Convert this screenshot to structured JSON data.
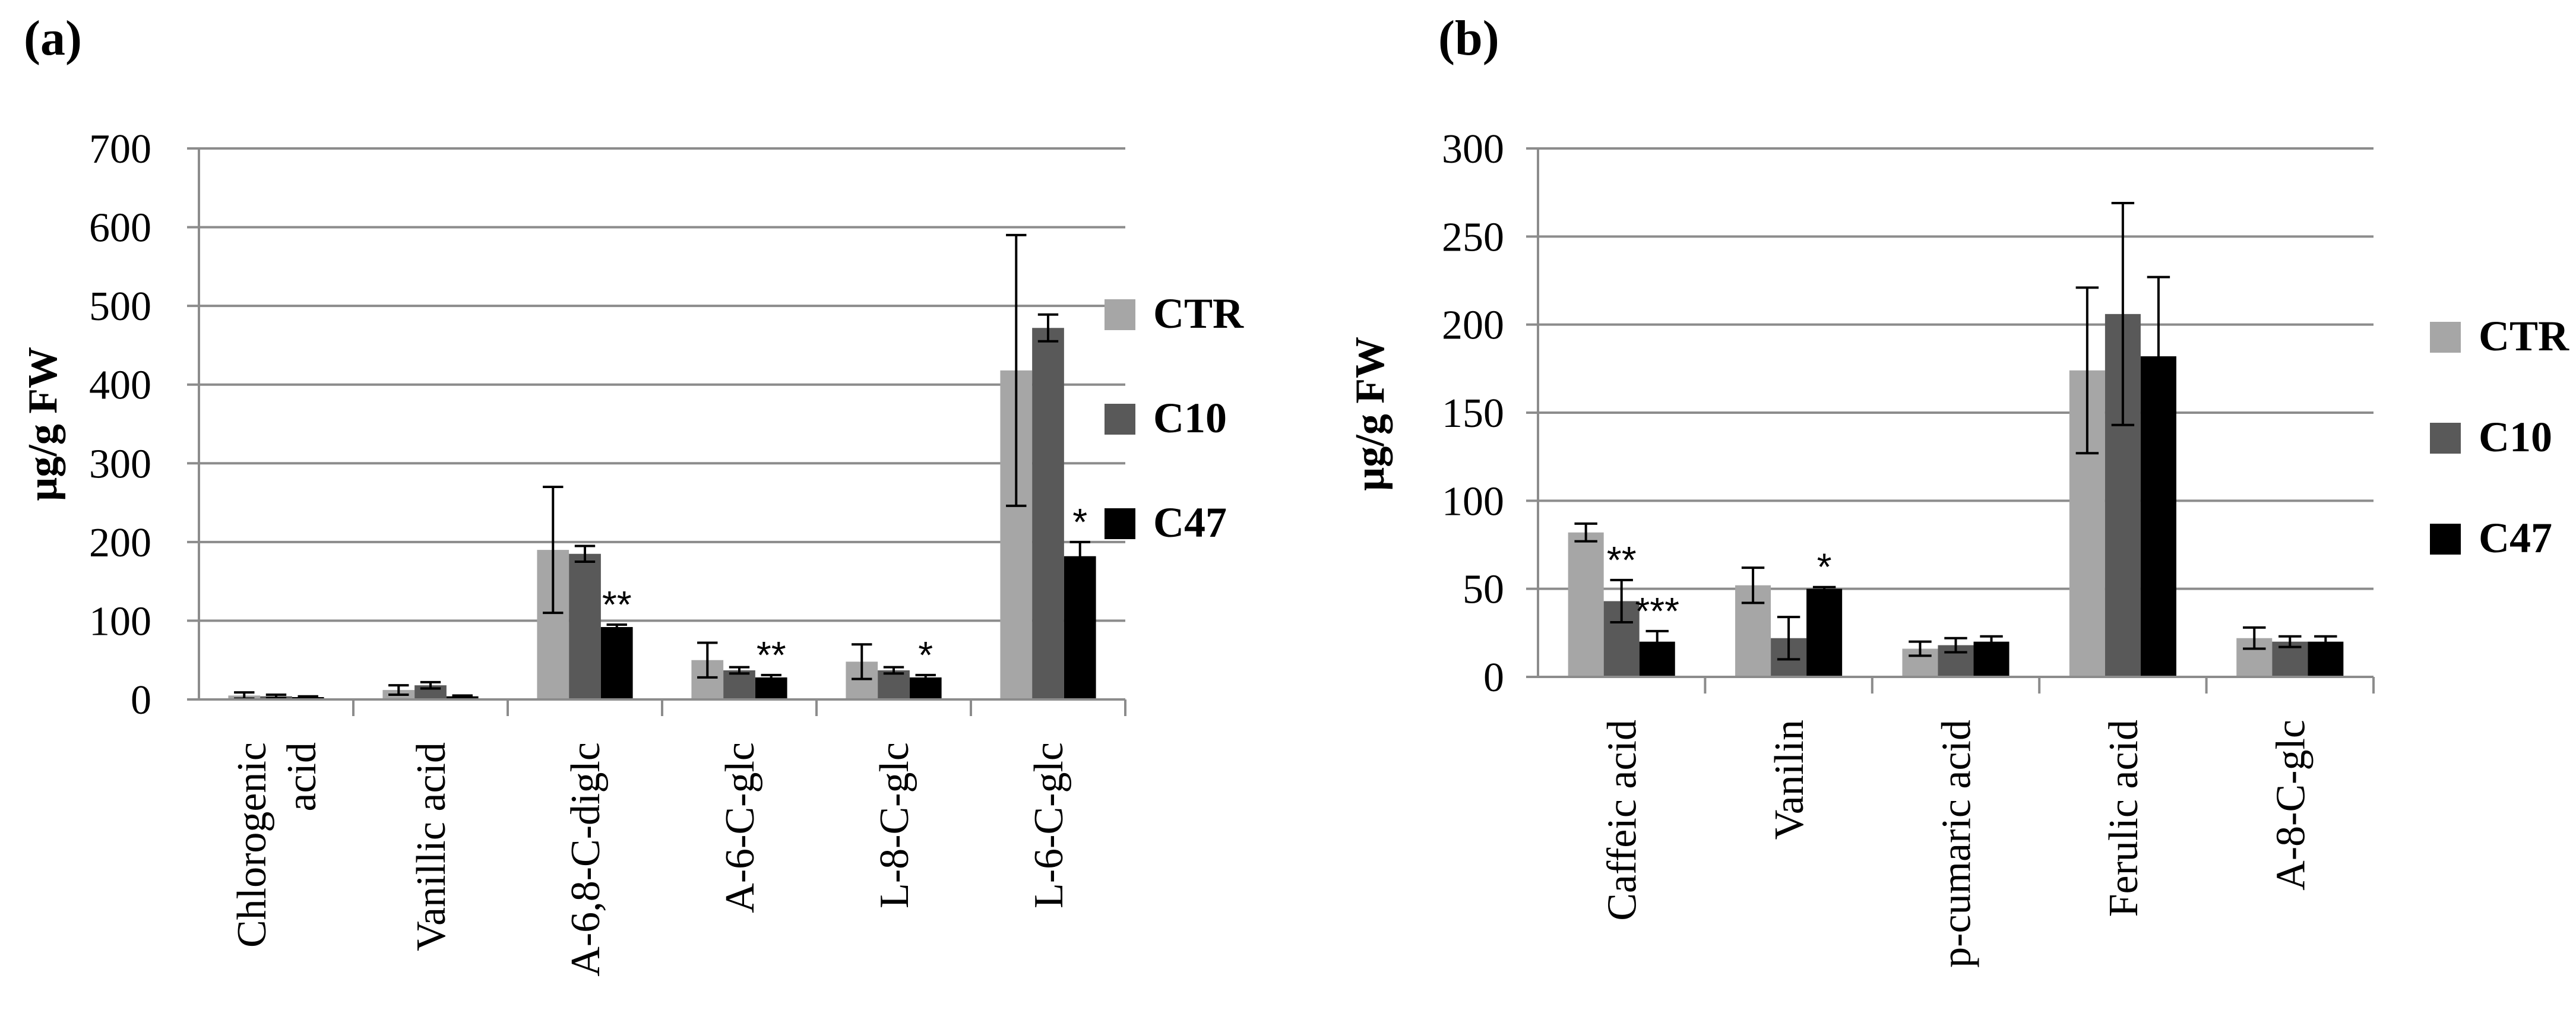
{
  "chart_data": [
    {
      "type": "bar",
      "panel_label": "(a)",
      "ylabel": "µg/g FW",
      "ylim": [
        0,
        700
      ],
      "yticks": [
        0,
        100,
        200,
        300,
        400,
        500,
        600,
        700
      ],
      "grid": true,
      "legend_position": "right",
      "categories": [
        [
          "Chlorogenic",
          "acid"
        ],
        [
          "Vanillic acid"
        ],
        [
          "A-6,8-C-diglc"
        ],
        [
          "A-6-C-glc"
        ],
        [
          "L-8-C-glc"
        ],
        [
          "L-6-C-glc"
        ]
      ],
      "series": [
        {
          "name": "CTR",
          "color": "#a6a6a6",
          "values": [
            5,
            12,
            190,
            50,
            48,
            418
          ],
          "errors": [
            4,
            6,
            80,
            22,
            22,
            172
          ],
          "sig": [
            "",
            "",
            "",
            "",
            "",
            ""
          ]
        },
        {
          "name": "C10",
          "color": "#595959",
          "values": [
            4,
            18,
            185,
            37,
            37,
            472
          ],
          "errors": [
            2,
            4,
            10,
            4,
            4,
            17
          ],
          "sig": [
            "",
            "",
            "",
            "",
            "",
            ""
          ]
        },
        {
          "name": "C47",
          "color": "#000000",
          "values": [
            3,
            4,
            92,
            28,
            28,
            182
          ],
          "errors": [
            1,
            1,
            3,
            3,
            3,
            18
          ],
          "sig": [
            "",
            "",
            "**",
            "**",
            "*",
            "*"
          ]
        }
      ]
    },
    {
      "type": "bar",
      "panel_label": "(b)",
      "ylabel": "µg/g FW",
      "ylim": [
        0,
        300
      ],
      "yticks": [
        0,
        50,
        100,
        150,
        200,
        250,
        300
      ],
      "grid": true,
      "legend_position": "right",
      "categories": [
        [
          "Caffeic acid"
        ],
        [
          "Vanilin"
        ],
        [
          "p-cumaric acid"
        ],
        [
          "Ferulic acid"
        ],
        [
          "A-8-C-glc"
        ]
      ],
      "series": [
        {
          "name": "CTR",
          "color": "#a6a6a6",
          "values": [
            82,
            52,
            16,
            174,
            22
          ],
          "errors": [
            5,
            10,
            4,
            47,
            6
          ],
          "sig": [
            "",
            "",
            "",
            "",
            ""
          ]
        },
        {
          "name": "C10",
          "color": "#595959",
          "values": [
            43,
            22,
            18,
            206,
            20
          ],
          "errors": [
            12,
            12,
            4,
            63,
            3
          ],
          "sig": [
            "**",
            "",
            "",
            "",
            ""
          ]
        },
        {
          "name": "C47",
          "color": "#000000",
          "values": [
            20,
            50,
            20,
            182,
            20
          ],
          "errors": [
            6,
            1,
            3,
            45,
            3
          ],
          "sig": [
            "***",
            "*",
            "",
            "",
            ""
          ]
        }
      ]
    }
  ]
}
